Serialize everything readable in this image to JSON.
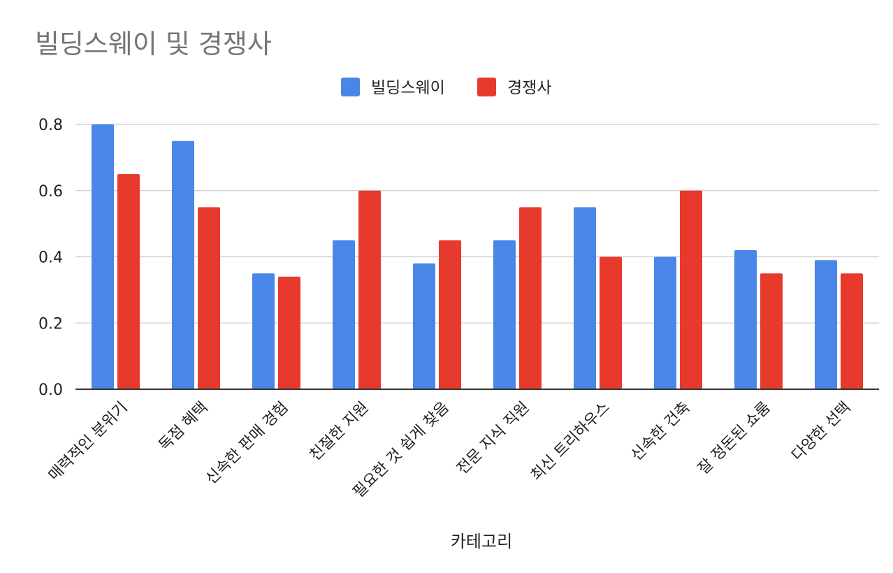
{
  "chart_data": {
    "type": "bar",
    "title": "빌딩스웨이 및 경쟁사",
    "xlabel": "카테고리",
    "ylabel": "",
    "ylim": [
      0,
      0.8
    ],
    "yticks": [
      "0.0",
      "0.2",
      "0.4",
      "0.6",
      "0.8"
    ],
    "ytick_values": [
      0,
      0.2,
      0.4,
      0.6,
      0.8
    ],
    "grid": true,
    "legend_position": "top-center",
    "categories": [
      "매력적인 분위기",
      "독점 혜택",
      "신속한 판매 경험",
      "친절한 지원",
      "필요한 것 쉽게 찾음",
      "전문 지식 직원",
      "최신 트리하우스",
      "신속한 건축",
      "잘 정돈된 쇼룸",
      "다양한 선택"
    ],
    "series": [
      {
        "name": "빌딩스웨이",
        "color": "#4a86e8",
        "values": [
          0.8,
          0.75,
          0.35,
          0.45,
          0.38,
          0.45,
          0.55,
          0.4,
          0.42,
          0.39
        ]
      },
      {
        "name": "경쟁사",
        "color": "#e8392d",
        "values": [
          0.65,
          0.55,
          0.34,
          0.6,
          0.45,
          0.55,
          0.4,
          0.6,
          0.35,
          0.35
        ]
      }
    ],
    "colors": {
      "title": "#757575",
      "text": "#222222",
      "grid": "#cccccc",
      "axis": "#333333"
    }
  }
}
